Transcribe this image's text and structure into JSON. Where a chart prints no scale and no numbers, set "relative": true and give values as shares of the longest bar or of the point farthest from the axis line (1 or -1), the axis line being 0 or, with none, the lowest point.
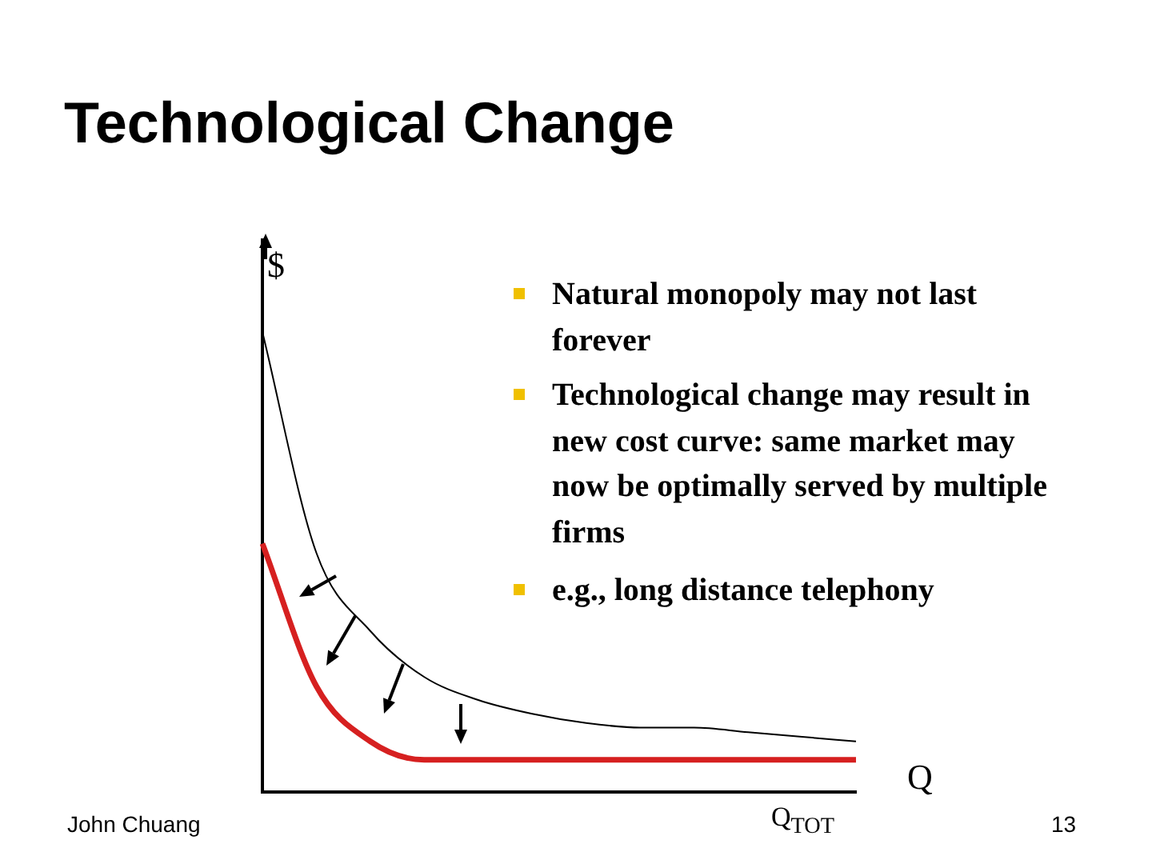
{
  "chart_data": {
    "type": "line",
    "relative": true,
    "title": "Technological Change",
    "ylabel": "$",
    "xlabel": "Q",
    "categories": [
      null,
      null,
      null,
      null,
      null,
      null,
      null,
      null,
      null,
      null,
      null,
      null
    ],
    "series": [
      {
        "color": "#000000",
        "values": [
          1,
          0.52,
          0.35,
          0.25,
          0.2,
          0.17,
          0.15,
          0.14,
          0.14,
          0.13,
          0.12,
          0.11
        ]
      },
      {
        "color": "#d62020",
        "values": [
          0.54,
          0.23,
          0.11,
          0.07,
          0.07,
          0.07,
          0.07,
          0.07,
          0.07,
          0.07,
          0.07,
          0.07
        ]
      }
    ],
    "annotations": [
      "Natural monopoly may not last forever",
      "Technological change may result in new cost curve: same market may now be optimally served by multiple firms",
      "e.g., long distance telephony",
      "Q$_{TOT}$",
      "John Chuang",
      "13"
    ],
    "grid": false,
    "legend": false,
    "marker": "none",
    "line_style": "solid"
  }
}
